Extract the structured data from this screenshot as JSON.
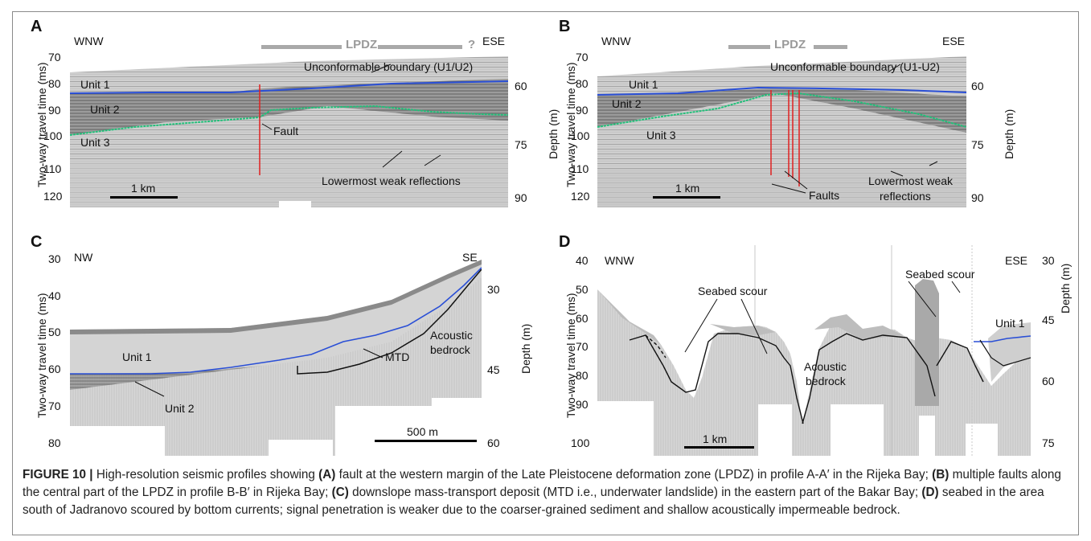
{
  "caption": {
    "figure_label": "FIGURE 10 |",
    "parts": [
      " High-resolution seismic profiles showing ",
      "(A)",
      " fault at the western margin of the Late Pleistocene deformation zone (LPDZ) in profile A-A′ in the Rijeka Bay; ",
      "(B)",
      " multiple faults along the central part of the LPDZ in profile B-B′ in Rijeka Bay; ",
      "(C)",
      " downslope mass-transport deposit (MTD i.e., underwater landslide) in the eastern part of the Bakar Bay; ",
      "(D)",
      " seabed in the area south of Jadranovo scoured by bottom currents; signal penetration is weaker due to the coarser-grained sediment and shallow acoustically impermeable bedrock."
    ]
  },
  "left_axis_title": "Two-way travel time (ms)",
  "right_axis_title": "Depth (m)",
  "colors": {
    "boundary_u1": "#2a4fd6",
    "boundary_u2": "#22c07a",
    "fault": "#e02020",
    "mtd": "#111111",
    "lpdz": "#a9a9a9"
  },
  "panels": [
    {
      "letter": "A",
      "left_dir": "WNW",
      "right_dir": "ESE",
      "lpdz": "LPDZ",
      "lpdz_q": "?",
      "left_ticks": [
        "70",
        "80",
        "90",
        "100",
        "110",
        "120"
      ],
      "right_ticks": [
        "60",
        "75",
        "90"
      ],
      "labels": {
        "unit1": "Unit 1",
        "unit2": "Unit 2",
        "unit3": "Unit 3",
        "boundary": "Unconformable boundary (U1/U2)",
        "fault": "Fault",
        "weak": "Lowermost weak reflections"
      },
      "scale": "1 km"
    },
    {
      "letter": "B",
      "left_dir": "WNW",
      "right_dir": "ESE",
      "lpdz": "LPDZ",
      "left_ticks": [
        "70",
        "80",
        "90",
        "100",
        "110",
        "120"
      ],
      "right_ticks": [
        "60",
        "75",
        "90"
      ],
      "labels": {
        "unit1": "Unit 1",
        "unit2": "Unit 2",
        "unit3": "Unit 3",
        "boundary": "Unconformable boundary (U1-U2)",
        "faults": "Faults",
        "weak1": "Lowermost weak",
        "weak2": "reflections"
      },
      "scale": "1 km"
    },
    {
      "letter": "C",
      "left_dir": "NW",
      "right_dir": "SE",
      "left_ticks": [
        "30",
        "40",
        "50",
        "60",
        "70",
        "80"
      ],
      "right_ticks": [
        "30",
        "45",
        "60"
      ],
      "labels": {
        "unit1": "Unit 1",
        "unit2": "Unit 2",
        "mtd": "MTD",
        "bedrock1": "Acoustic",
        "bedrock2": "bedrock"
      },
      "scale": "500 m"
    },
    {
      "letter": "D",
      "left_dir": "WNW",
      "right_dir": "ESE",
      "left_ticks": [
        "40",
        "50",
        "60",
        "70",
        "80",
        "90",
        "100"
      ],
      "right_ticks": [
        "30",
        "45",
        "60",
        "75"
      ],
      "labels": {
        "scour1": "Seabed scour",
        "scour2": "Seabed scour",
        "bedrock1": "Acoustic",
        "bedrock2": "bedrock",
        "unit1": "Unit 1"
      },
      "scale": "1 km"
    }
  ]
}
